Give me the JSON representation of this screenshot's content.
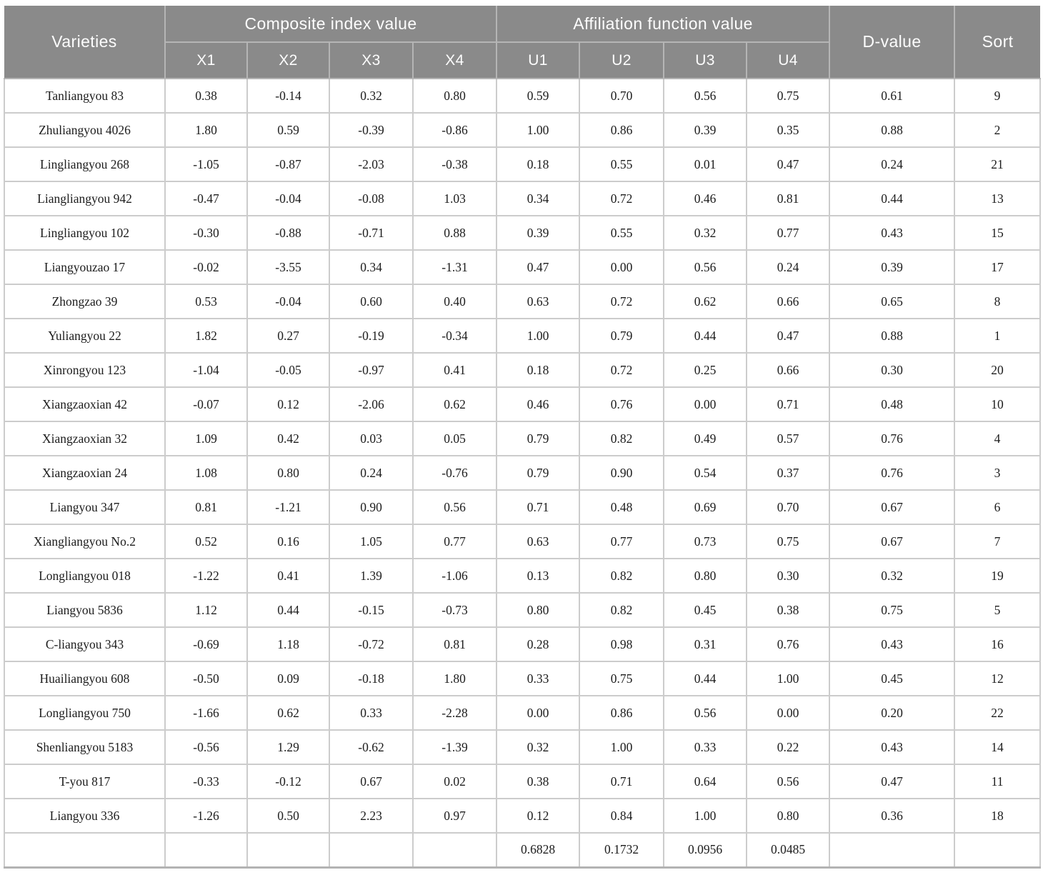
{
  "colors": {
    "header_bg": "#8a8a8a",
    "header_text": "#fdfdfd",
    "header_border": "#b5b5b5",
    "body_border": "#cccccc",
    "body_text": "#1c1c1c",
    "bottom_border": "#b3b3b3"
  },
  "table": {
    "header": {
      "varieties_label": "Varieties",
      "composite_group_label": "Composite index value",
      "composite_columns": [
        "X1",
        "X2",
        "X3",
        "X4"
      ],
      "affiliation_group_label": "Affiliation function value",
      "affiliation_columns": [
        "U1",
        "U2",
        "U3",
        "U4"
      ],
      "d_value_label": "D-value",
      "sort_label": "Sort"
    },
    "rows": [
      {
        "variety": "Tanliangyou 83",
        "x": [
          "0.38",
          "-0.14",
          "0.32",
          "0.80"
        ],
        "u": [
          "0.59",
          "0.70",
          "0.56",
          "0.75"
        ],
        "d": "0.61",
        "sort": "9"
      },
      {
        "variety": "Zhuliangyou 4026",
        "x": [
          "1.80",
          "0.59",
          "-0.39",
          "-0.86"
        ],
        "u": [
          "1.00",
          "0.86",
          "0.39",
          "0.35"
        ],
        "d": "0.88",
        "sort": "2"
      },
      {
        "variety": "Lingliangyou 268",
        "x": [
          "-1.05",
          "-0.87",
          "-2.03",
          "-0.38"
        ],
        "u": [
          "0.18",
          "0.55",
          "0.01",
          "0.47"
        ],
        "d": "0.24",
        "sort": "21"
      },
      {
        "variety": "Liangliangyou 942",
        "x": [
          "-0.47",
          "-0.04",
          "-0.08",
          "1.03"
        ],
        "u": [
          "0.34",
          "0.72",
          "0.46",
          "0.81"
        ],
        "d": "0.44",
        "sort": "13"
      },
      {
        "variety": "Lingliangyou 102",
        "x": [
          "-0.30",
          "-0.88",
          "-0.71",
          "0.88"
        ],
        "u": [
          "0.39",
          "0.55",
          "0.32",
          "0.77"
        ],
        "d": "0.43",
        "sort": "15"
      },
      {
        "variety": "Liangyouzao 17",
        "x": [
          "-0.02",
          "-3.55",
          "0.34",
          "-1.31"
        ],
        "u": [
          "0.47",
          "0.00",
          "0.56",
          "0.24"
        ],
        "d": "0.39",
        "sort": "17"
      },
      {
        "variety": "Zhongzao 39",
        "x": [
          "0.53",
          "-0.04",
          "0.60",
          "0.40"
        ],
        "u": [
          "0.63",
          "0.72",
          "0.62",
          "0.66"
        ],
        "d": "0.65",
        "sort": "8"
      },
      {
        "variety": "Yuliangyou 22",
        "x": [
          "1.82",
          "0.27",
          "-0.19",
          "-0.34"
        ],
        "u": [
          "1.00",
          "0.79",
          "0.44",
          "0.47"
        ],
        "d": "0.88",
        "sort": "1"
      },
      {
        "variety": "Xinrongyou 123",
        "x": [
          "-1.04",
          "-0.05",
          "-0.97",
          "0.41"
        ],
        "u": [
          "0.18",
          "0.72",
          "0.25",
          "0.66"
        ],
        "d": "0.30",
        "sort": "20"
      },
      {
        "variety": "Xiangzaoxian 42",
        "x": [
          "-0.07",
          "0.12",
          "-2.06",
          "0.62"
        ],
        "u": [
          "0.46",
          "0.76",
          "0.00",
          "0.71"
        ],
        "d": "0.48",
        "sort": "10"
      },
      {
        "variety": "Xiangzaoxian 32",
        "x": [
          "1.09",
          "0.42",
          "0.03",
          "0.05"
        ],
        "u": [
          "0.79",
          "0.82",
          "0.49",
          "0.57"
        ],
        "d": "0.76",
        "sort": "4"
      },
      {
        "variety": "Xiangzaoxian 24",
        "x": [
          "1.08",
          "0.80",
          "0.24",
          "-0.76"
        ],
        "u": [
          "0.79",
          "0.90",
          "0.54",
          "0.37"
        ],
        "d": "0.76",
        "sort": "3"
      },
      {
        "variety": "Liangyou 347",
        "x": [
          "0.81",
          "-1.21",
          "0.90",
          "0.56"
        ],
        "u": [
          "0.71",
          "0.48",
          "0.69",
          "0.70"
        ],
        "d": "0.67",
        "sort": "6"
      },
      {
        "variety": "Xiangliangyou No.2",
        "x": [
          "0.52",
          "0.16",
          "1.05",
          "0.77"
        ],
        "u": [
          "0.63",
          "0.77",
          "0.73",
          "0.75"
        ],
        "d": "0.67",
        "sort": "7"
      },
      {
        "variety": "Longliangyou 018",
        "x": [
          "-1.22",
          "0.41",
          "1.39",
          "-1.06"
        ],
        "u": [
          "0.13",
          "0.82",
          "0.80",
          "0.30"
        ],
        "d": "0.32",
        "sort": "19"
      },
      {
        "variety": "Liangyou 5836",
        "x": [
          "1.12",
          "0.44",
          "-0.15",
          "-0.73"
        ],
        "u": [
          "0.80",
          "0.82",
          "0.45",
          "0.38"
        ],
        "d": "0.75",
        "sort": "5"
      },
      {
        "variety": "C-liangyou 343",
        "x": [
          "-0.69",
          "1.18",
          "-0.72",
          "0.81"
        ],
        "u": [
          "0.28",
          "0.98",
          "0.31",
          "0.76"
        ],
        "d": "0.43",
        "sort": "16"
      },
      {
        "variety": "Huailiangyou 608",
        "x": [
          "-0.50",
          "0.09",
          "-0.18",
          "1.80"
        ],
        "u": [
          "0.33",
          "0.75",
          "0.44",
          "1.00"
        ],
        "d": "0.45",
        "sort": "12"
      },
      {
        "variety": "Longliangyou 750",
        "x": [
          "-1.66",
          "0.62",
          "0.33",
          "-2.28"
        ],
        "u": [
          "0.00",
          "0.86",
          "0.56",
          "0.00"
        ],
        "d": "0.20",
        "sort": "22"
      },
      {
        "variety": "Shenliangyou 5183",
        "x": [
          "-0.56",
          "1.29",
          "-0.62",
          "-1.39"
        ],
        "u": [
          "0.32",
          "1.00",
          "0.33",
          "0.22"
        ],
        "d": "0.43",
        "sort": "14"
      },
      {
        "variety": "T-you 817",
        "x": [
          "-0.33",
          "-0.12",
          "0.67",
          "0.02"
        ],
        "u": [
          "0.38",
          "0.71",
          "0.64",
          "0.56"
        ],
        "d": "0.47",
        "sort": "11"
      },
      {
        "variety": "Liangyou 336",
        "x": [
          "-1.26",
          "0.50",
          "2.23",
          "0.97"
        ],
        "u": [
          "0.12",
          "0.84",
          "1.00",
          "0.80"
        ],
        "d": "0.36",
        "sort": "18"
      }
    ],
    "footer": {
      "u_weights": [
        "0.6828",
        "0.1732",
        "0.0956",
        "0.0485"
      ]
    }
  }
}
